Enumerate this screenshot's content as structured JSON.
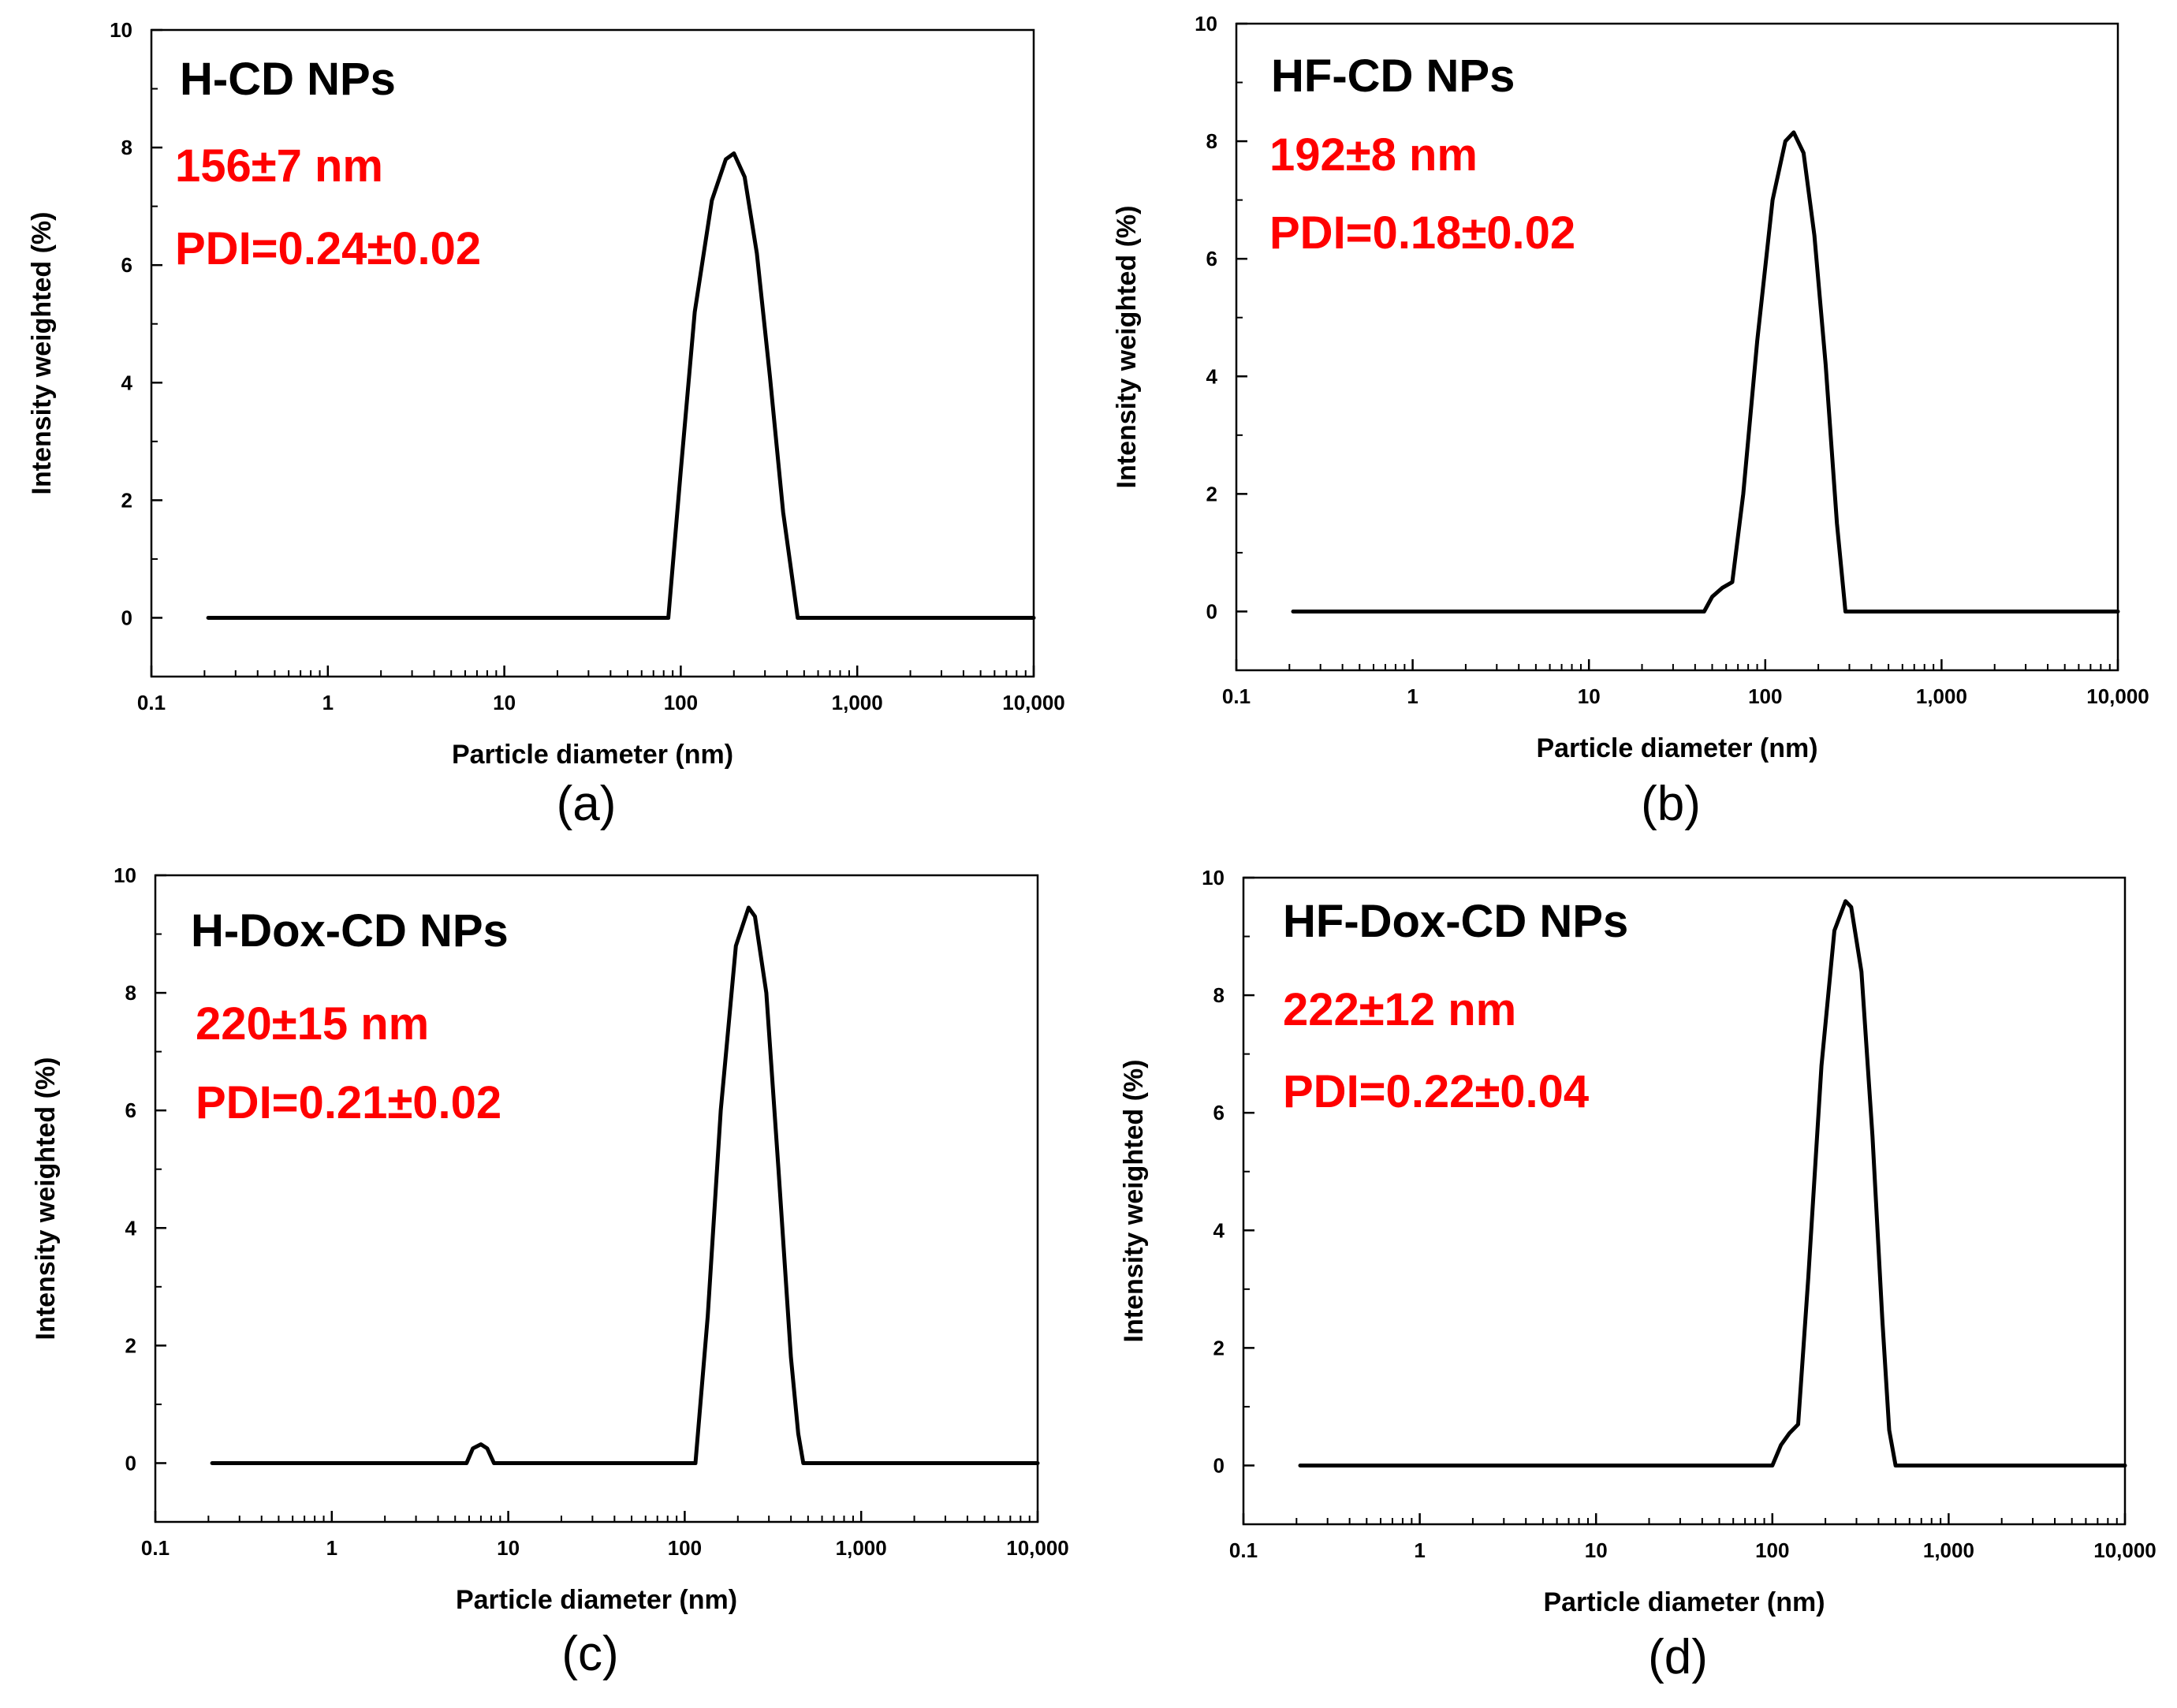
{
  "colors": {
    "curve": "#000000",
    "annotation": "#ff0000",
    "axis": "#000000"
  },
  "chart_data": [
    {
      "type": "line",
      "panel_label": "(a)",
      "name_label": "H-CD NPs",
      "annotation_size": "156±7 nm",
      "annotation_pdi": "PDI=0.24±0.02",
      "xlabel": "Particle diameter (nm)",
      "ylabel": "Intensity weighted (%)",
      "xscale": "log",
      "xlim": [
        0.1,
        10000
      ],
      "ylim": [
        -1,
        10
      ],
      "xticks": [
        0.1,
        1,
        10,
        100,
        1000,
        10000
      ],
      "xtick_labels": [
        "0.1",
        "1",
        "10",
        "100",
        "1,000",
        "10,000"
      ],
      "yticks": [
        0,
        2,
        4,
        6,
        8,
        10
      ],
      "ytick_labels": [
        "0",
        "2",
        "4",
        "6",
        "8",
        "10"
      ],
      "x": [
        0.21,
        85,
        100,
        120,
        150,
        180,
        200,
        230,
        270,
        320,
        380,
        460,
        10000
      ],
      "y": [
        0,
        0,
        2.5,
        5.2,
        7.1,
        7.8,
        7.9,
        7.5,
        6.2,
        4.1,
        1.8,
        0,
        0
      ]
    },
    {
      "type": "line",
      "panel_label": "(b)",
      "name_label": "HF-CD NPs",
      "annotation_size": "192±8 nm",
      "annotation_pdi": "PDI=0.18±0.02",
      "xlabel": "Particle diameter (nm)",
      "ylabel": "Intensity weighted (%)",
      "xscale": "log",
      "xlim": [
        0.1,
        10000
      ],
      "ylim": [
        -1,
        10
      ],
      "xticks": [
        0.1,
        1,
        10,
        100,
        1000,
        10000
      ],
      "xtick_labels": [
        "0.1",
        "1",
        "10",
        "100",
        "1,000",
        "10,000"
      ],
      "yticks": [
        0,
        2,
        4,
        6,
        8,
        10
      ],
      "ytick_labels": [
        "0",
        "2",
        "4",
        "6",
        "8",
        "10"
      ],
      "x": [
        0.21,
        45,
        50,
        57,
        65,
        75,
        90,
        110,
        130,
        145,
        165,
        190,
        220,
        255,
        285,
        10000
      ],
      "y": [
        0,
        0,
        0.25,
        0.4,
        0.5,
        2.0,
        4.6,
        7.0,
        8.0,
        8.15,
        7.8,
        6.4,
        4.2,
        1.5,
        0,
        0
      ]
    },
    {
      "type": "line",
      "panel_label": "(c)",
      "name_label": "H-Dox-CD NPs",
      "annotation_size": "220±15 nm",
      "annotation_pdi": "PDI=0.21±0.02",
      "xlabel": "Particle diameter (nm)",
      "ylabel": "Intensity weighted (%)",
      "xscale": "log",
      "xlim": [
        0.1,
        10000
      ],
      "ylim": [
        -1,
        10
      ],
      "xticks": [
        0.1,
        1,
        10,
        100,
        1000,
        10000
      ],
      "xtick_labels": [
        "0.1",
        "1",
        "10",
        "100",
        "1,000",
        "10,000"
      ],
      "yticks": [
        0,
        2,
        4,
        6,
        8,
        10
      ],
      "ytick_labels": [
        "0",
        "2",
        "4",
        "6",
        "8",
        "10"
      ],
      "x": [
        0.21,
        5.8,
        6.3,
        7.0,
        7.6,
        8.3,
        115,
        135,
        160,
        195,
        230,
        250,
        290,
        340,
        400,
        440,
        470,
        10000
      ],
      "y": [
        0,
        0,
        0.25,
        0.32,
        0.25,
        0,
        0,
        2.5,
        6.0,
        8.8,
        9.45,
        9.3,
        8.0,
        5.0,
        1.8,
        0.5,
        0,
        0
      ]
    },
    {
      "type": "line",
      "panel_label": "(d)",
      "name_label": "HF-Dox-CD NPs",
      "annotation_size": "222±12 nm",
      "annotation_pdi": "PDI=0.22±0.04",
      "xlabel": "Particle diameter (nm)",
      "ylabel": "Intensity weighted (%)",
      "xscale": "log",
      "xlim": [
        0.1,
        10000
      ],
      "ylim": [
        -1,
        10
      ],
      "xticks": [
        0.1,
        1,
        10,
        100,
        1000,
        10000
      ],
      "xtick_labels": [
        "0.1",
        "1",
        "10",
        "100",
        "1,000",
        "10,000"
      ],
      "yticks": [
        0,
        2,
        4,
        6,
        8,
        10
      ],
      "ytick_labels": [
        "0",
        "2",
        "4",
        "6",
        "8",
        "10"
      ],
      "x": [
        0.21,
        100,
        112,
        125,
        140,
        160,
        190,
        225,
        260,
        280,
        320,
        370,
        420,
        460,
        500,
        10000
      ],
      "y": [
        0,
        0,
        0.35,
        0.55,
        0.7,
        3.2,
        6.8,
        9.1,
        9.6,
        9.5,
        8.4,
        5.6,
        2.5,
        0.6,
        0,
        0
      ]
    }
  ]
}
